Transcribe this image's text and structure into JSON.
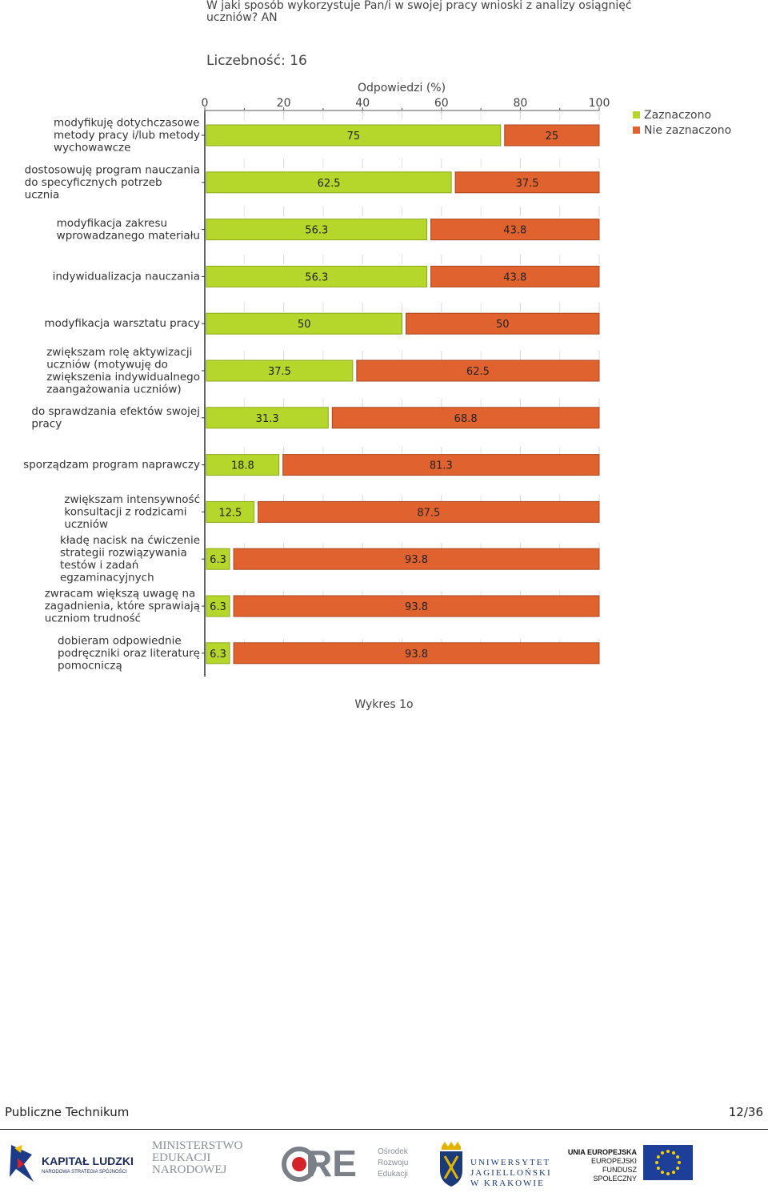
{
  "header": {
    "title": "W jaki sposób wykorzystuje Pan/i w swojej pracy wnioski z analizy osiągnięć uczniów? AN",
    "count": "Liczebność: 16"
  },
  "chart_data": {
    "type": "bar",
    "orientation": "horizontal",
    "stacked": true,
    "xlabel": "Odpowiedzi (%)",
    "xlim": [
      0,
      100
    ],
    "xticks": [
      0,
      20,
      40,
      60,
      80,
      100
    ],
    "legend_position": "top-right",
    "categories": [
      [
        "modyfikuję dotychczasowe",
        "metody pracy i/lub metody",
        "wychowawcze"
      ],
      [
        "dostosowuję program nauczania",
        "do specyficznych potrzeb",
        "ucznia"
      ],
      [
        "modyfikacja zakresu",
        "wprowadzanego materiału"
      ],
      [
        "indywidualizacja nauczania"
      ],
      [
        "modyfikacja warsztatu pracy"
      ],
      [
        "zwiększam rolę aktywizacji",
        "uczniów (motywuję do",
        "zwiększenia indywidualnego",
        "zaangażowania uczniów)"
      ],
      [
        "do sprawdzania efektów swojej",
        "pracy"
      ],
      [
        "sporządzam program naprawczy"
      ],
      [
        "zwiększam intensywność",
        "konsultacji z rodzicami",
        "uczniów"
      ],
      [
        "kładę nacisk na ćwiczenie",
        "strategii rozwiązywania",
        "testów i zadań",
        "egzaminacyjnych"
      ],
      [
        "zwracam większą uwagę na",
        "zagadnienia, które sprawiają",
        "uczniom trudność"
      ],
      [
        "dobieram odpowiednie",
        "podręczniki oraz literaturę",
        "pomocniczą"
      ]
    ],
    "series": [
      {
        "name": "Zaznaczono",
        "color": "#b5d62b",
        "values": [
          75,
          62.5,
          56.3,
          56.3,
          50,
          37.5,
          31.3,
          18.8,
          12.5,
          6.3,
          6.3,
          6.3
        ],
        "labels": [
          "75",
          "62.5",
          "56.3",
          "56.3",
          "50",
          "37.5",
          "31.3",
          "18.8",
          "12.5",
          "6.3",
          "6.3",
          "6.3"
        ]
      },
      {
        "name": "Nie zaznaczono",
        "color": "#e0622e",
        "values": [
          25,
          37.5,
          43.8,
          43.8,
          50,
          62.5,
          68.8,
          81.3,
          87.5,
          93.8,
          93.8,
          93.8
        ],
        "labels": [
          "25",
          "37.5",
          "43.8",
          "43.8",
          "50",
          "62.5",
          "68.8",
          "81.3",
          "87.5",
          "93.8",
          "93.8",
          "93.8"
        ]
      }
    ]
  },
  "caption": "Wykres 1o",
  "footer": {
    "left": "Publiczne Technikum",
    "right": "12/36"
  },
  "logos": {
    "kapital_ludzki": "KAPITAŁ LUDZKI",
    "kapital_ludzki_sub": "NARODOWA STRATEGIA SPÓJNOŚCI",
    "ministerstwo": [
      "MINISTERSTWO",
      "EDUKACJI",
      "NARODOWEJ"
    ],
    "ore": "ORE",
    "ore_sub": [
      "Ośrodek",
      "Rozwoju",
      "Edukacji"
    ],
    "uj": [
      "UNIWERSYTET",
      "JAGIELLOŃSKI",
      "W KRAKOWIE"
    ],
    "ue": [
      "UNIA EUROPEJSKA",
      "EUROPEJSKI",
      "FUNDUSZ SPOŁECZNY"
    ]
  }
}
